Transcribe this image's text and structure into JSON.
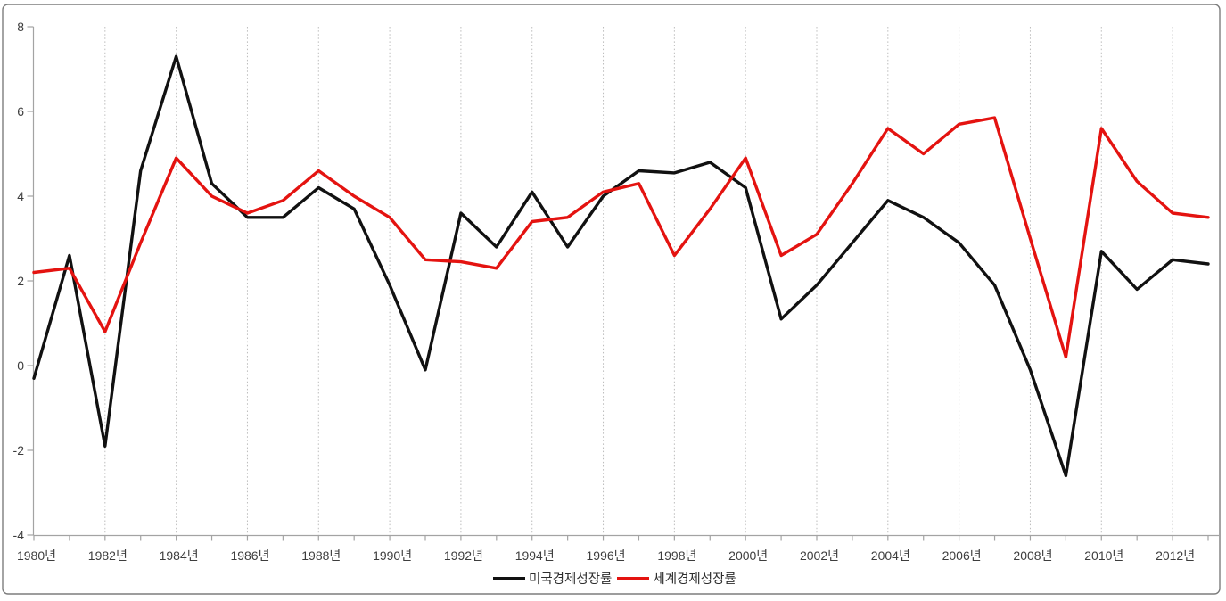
{
  "chart_data": {
    "type": "line",
    "title": "",
    "xlabel": "",
    "ylabel": "",
    "x": [
      1980,
      1981,
      1982,
      1983,
      1984,
      1985,
      1986,
      1987,
      1988,
      1989,
      1990,
      1991,
      1992,
      1993,
      1994,
      1995,
      1996,
      1997,
      1998,
      1999,
      2000,
      2001,
      2002,
      2003,
      2004,
      2005,
      2006,
      2007,
      2008,
      2009,
      2010,
      2011,
      2012,
      2013
    ],
    "x_tick_labels": [
      "1980년",
      "1982년",
      "1984년",
      "1986년",
      "1988년",
      "1990년",
      "1992년",
      "1994년",
      "1996년",
      "1998년",
      "2000년",
      "2002년",
      "2004년",
      "2006년",
      "2008년",
      "2010년",
      "2012년"
    ],
    "y_ticks": [
      8,
      6,
      4,
      2,
      0,
      -2,
      -4
    ],
    "y_tick_labels": [
      "8",
      "6",
      "4",
      "2",
      "0",
      "-2",
      "-4"
    ],
    "ylim": [
      -4,
      8
    ],
    "grid": "vertical dotted gridlines at every labeled year (every 2 years), no horizontal gridlines",
    "legend_position": "bottom-center",
    "series": [
      {
        "name": "미국경제성장률",
        "color": "#111111",
        "values": [
          -0.3,
          2.6,
          -1.9,
          4.6,
          7.3,
          4.3,
          3.5,
          3.5,
          4.2,
          3.7,
          1.9,
          -0.1,
          3.6,
          2.8,
          4.1,
          2.8,
          4.0,
          4.6,
          4.55,
          4.8,
          4.2,
          1.1,
          1.9,
          2.9,
          3.9,
          3.5,
          2.9,
          1.9,
          -0.1,
          -2.6,
          2.7,
          1.8,
          2.5,
          2.4
        ]
      },
      {
        "name": "세계경제성장률",
        "color": "#e41310",
        "values": [
          2.2,
          2.3,
          0.8,
          2.9,
          4.9,
          4.0,
          3.6,
          3.9,
          4.6,
          4.0,
          3.5,
          2.5,
          2.45,
          2.3,
          3.4,
          3.5,
          4.1,
          4.3,
          2.6,
          3.7,
          4.9,
          2.6,
          3.1,
          4.3,
          5.6,
          5.0,
          5.7,
          5.85,
          3.0,
          0.2,
          5.6,
          4.35,
          3.6,
          3.5
        ]
      }
    ]
  },
  "colors": {
    "background": "#ffffff",
    "outer_border": "#7d7d7d",
    "axis": "#a3a3a3",
    "gridline": "#bcbcbc",
    "tick_label": "#3d3d3d",
    "us_line": "#111111",
    "world_line": "#e41310"
  }
}
